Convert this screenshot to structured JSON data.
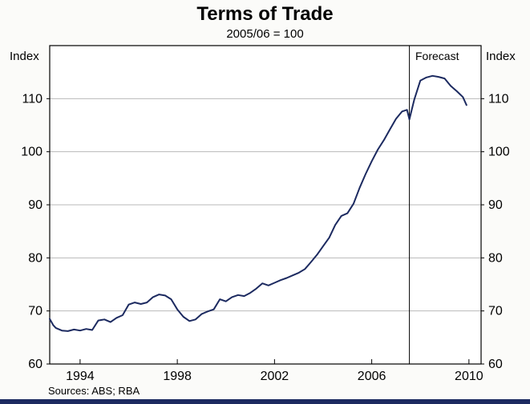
{
  "page": {
    "background": "#fbfbf9",
    "bottom_bar_color": "#1c2a60"
  },
  "chart": {
    "title": "Terms of Trade",
    "subtitle": "2005/06 = 100",
    "left_axis_label": "Index",
    "right_axis_label": "Index",
    "forecast_label": "Forecast",
    "sources": "Sources: ABS; RBA"
  },
  "chart_data": {
    "type": "line",
    "title": "Terms of Trade",
    "subtitle": "2005/06 = 100",
    "ylabel_left": "Index",
    "ylabel_right": "Index",
    "ylim": [
      60,
      120
    ],
    "yticks": [
      60,
      70,
      80,
      90,
      100,
      110
    ],
    "gridlines": [
      70,
      80,
      90,
      100,
      110
    ],
    "xlim": [
      1992.75,
      2010.5
    ],
    "xticks": [
      1994,
      1998,
      2002,
      2006,
      2010
    ],
    "forecast_line_x": 2007.55,
    "annotations": [
      {
        "text": "Forecast",
        "position": "top-right-of-forecast-line"
      }
    ],
    "line_color": "#1c2a60",
    "grid_color": "#b9b9b9",
    "frame_color": "#000000",
    "legend": "none",
    "series": [
      {
        "name": "Terms of trade (2005/06 = 100)",
        "points": [
          [
            1992.75,
            68.5
          ],
          [
            1992.9,
            67.3
          ],
          [
            1993.0,
            66.8
          ],
          [
            1993.25,
            66.3
          ],
          [
            1993.5,
            66.2
          ],
          [
            1993.75,
            66.5
          ],
          [
            1994.0,
            66.3
          ],
          [
            1994.25,
            66.6
          ],
          [
            1994.5,
            66.4
          ],
          [
            1994.75,
            68.2
          ],
          [
            1995.0,
            68.4
          ],
          [
            1995.25,
            67.9
          ],
          [
            1995.5,
            68.7
          ],
          [
            1995.75,
            69.2
          ],
          [
            1996.0,
            71.2
          ],
          [
            1996.25,
            71.6
          ],
          [
            1996.5,
            71.3
          ],
          [
            1996.75,
            71.6
          ],
          [
            1997.0,
            72.6
          ],
          [
            1997.25,
            73.1
          ],
          [
            1997.5,
            72.9
          ],
          [
            1997.75,
            72.2
          ],
          [
            1998.0,
            70.3
          ],
          [
            1998.25,
            68.9
          ],
          [
            1998.5,
            68.1
          ],
          [
            1998.75,
            68.4
          ],
          [
            1999.0,
            69.4
          ],
          [
            1999.25,
            69.9
          ],
          [
            1999.5,
            70.3
          ],
          [
            1999.75,
            72.2
          ],
          [
            2000.0,
            71.8
          ],
          [
            2000.25,
            72.6
          ],
          [
            2000.5,
            73.0
          ],
          [
            2000.75,
            72.8
          ],
          [
            2001.0,
            73.4
          ],
          [
            2001.25,
            74.2
          ],
          [
            2001.5,
            75.2
          ],
          [
            2001.75,
            74.8
          ],
          [
            2002.0,
            75.3
          ],
          [
            2002.25,
            75.8
          ],
          [
            2002.5,
            76.2
          ],
          [
            2002.75,
            76.7
          ],
          [
            2003.0,
            77.2
          ],
          [
            2003.25,
            77.9
          ],
          [
            2003.5,
            79.2
          ],
          [
            2003.75,
            80.6
          ],
          [
            2004.0,
            82.2
          ],
          [
            2004.25,
            83.8
          ],
          [
            2004.5,
            86.2
          ],
          [
            2004.75,
            87.9
          ],
          [
            2005.0,
            88.4
          ],
          [
            2005.25,
            90.2
          ],
          [
            2005.5,
            93.2
          ],
          [
            2005.75,
            95.8
          ],
          [
            2006.0,
            98.2
          ],
          [
            2006.25,
            100.4
          ],
          [
            2006.5,
            102.2
          ],
          [
            2006.75,
            104.2
          ],
          [
            2007.0,
            106.2
          ],
          [
            2007.25,
            107.6
          ],
          [
            2007.45,
            107.9
          ],
          [
            2007.55,
            106.1
          ],
          [
            2007.75,
            109.8
          ],
          [
            2008.0,
            113.4
          ],
          [
            2008.25,
            114.0
          ],
          [
            2008.5,
            114.3
          ],
          [
            2008.75,
            114.1
          ],
          [
            2009.0,
            113.8
          ],
          [
            2009.25,
            112.4
          ],
          [
            2009.5,
            111.4
          ],
          [
            2009.75,
            110.3
          ],
          [
            2009.9,
            108.8
          ]
        ]
      }
    ]
  }
}
